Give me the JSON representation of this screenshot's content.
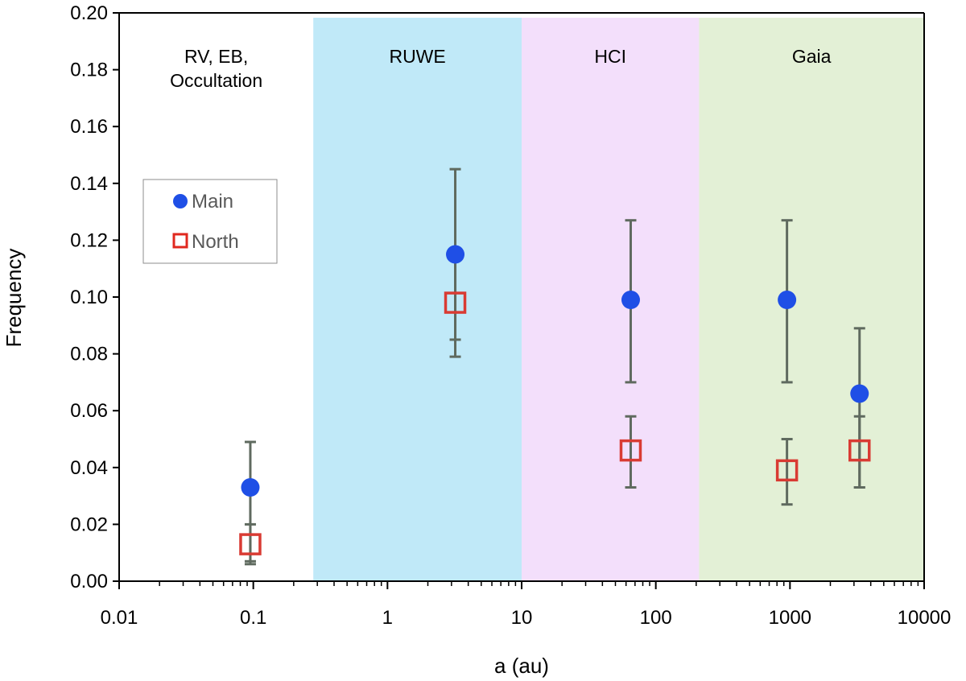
{
  "chart_data": {
    "type": "scatter",
    "title": "",
    "xlabel": "a (au)",
    "ylabel": "Frequency",
    "xscale": "log",
    "xlim": [
      0.01,
      10000
    ],
    "ylim": [
      0,
      0.2
    ],
    "x_ticks": [
      "0.01",
      "0.1",
      "1",
      "10",
      "100",
      "1000",
      "10000"
    ],
    "y_ticks": [
      "0.00",
      "0.02",
      "0.04",
      "0.06",
      "0.08",
      "0.10",
      "0.12",
      "0.14",
      "0.16",
      "0.18",
      "0.20"
    ],
    "grid": false,
    "regions": [
      {
        "label_lines": [
          "RV, EB,",
          "Occultation"
        ],
        "x_start": 0.01,
        "x_end": 0.28,
        "color": "#ffffff"
      },
      {
        "label_lines": [
          "RUWE"
        ],
        "x_start": 0.28,
        "x_end": 10,
        "color": "#c0e9f8"
      },
      {
        "label_lines": [
          "HCI"
        ],
        "x_start": 10,
        "x_end": 210,
        "color": "#f3dffb"
      },
      {
        "label_lines": [
          "Gaia"
        ],
        "x_start": 210,
        "x_end": 10000,
        "color": "#e3f0d6"
      }
    ],
    "legend": {
      "position": "left-middle",
      "entries": [
        "Main",
        "North"
      ]
    },
    "series": [
      {
        "name": "Main",
        "marker": "filled-circle",
        "color": "#1f4fe6",
        "points": [
          {
            "x": 0.095,
            "y": 0.033,
            "err_low": 0.007,
            "err_high": 0.049
          },
          {
            "x": 3.2,
            "y": 0.115,
            "err_low": 0.085,
            "err_high": 0.145
          },
          {
            "x": 65,
            "y": 0.099,
            "err_low": 0.07,
            "err_high": 0.127
          },
          {
            "x": 950,
            "y": 0.099,
            "err_low": 0.07,
            "err_high": 0.127
          },
          {
            "x": 3300,
            "y": 0.066,
            "err_low": 0.033,
            "err_high": 0.089
          }
        ]
      },
      {
        "name": "North",
        "marker": "open-square",
        "color": "#d93b33",
        "points": [
          {
            "x": 0.095,
            "y": 0.013,
            "err_low": 0.006,
            "err_high": 0.02
          },
          {
            "x": 3.2,
            "y": 0.098,
            "err_low": 0.079,
            "err_high": 0.116
          },
          {
            "x": 65,
            "y": 0.046,
            "err_low": 0.033,
            "err_high": 0.058
          },
          {
            "x": 950,
            "y": 0.039,
            "err_low": 0.027,
            "err_high": 0.05
          },
          {
            "x": 3300,
            "y": 0.046,
            "err_low": 0.033,
            "err_high": 0.058
          }
        ]
      }
    ],
    "errorbar_color": "#5f6a5f"
  }
}
